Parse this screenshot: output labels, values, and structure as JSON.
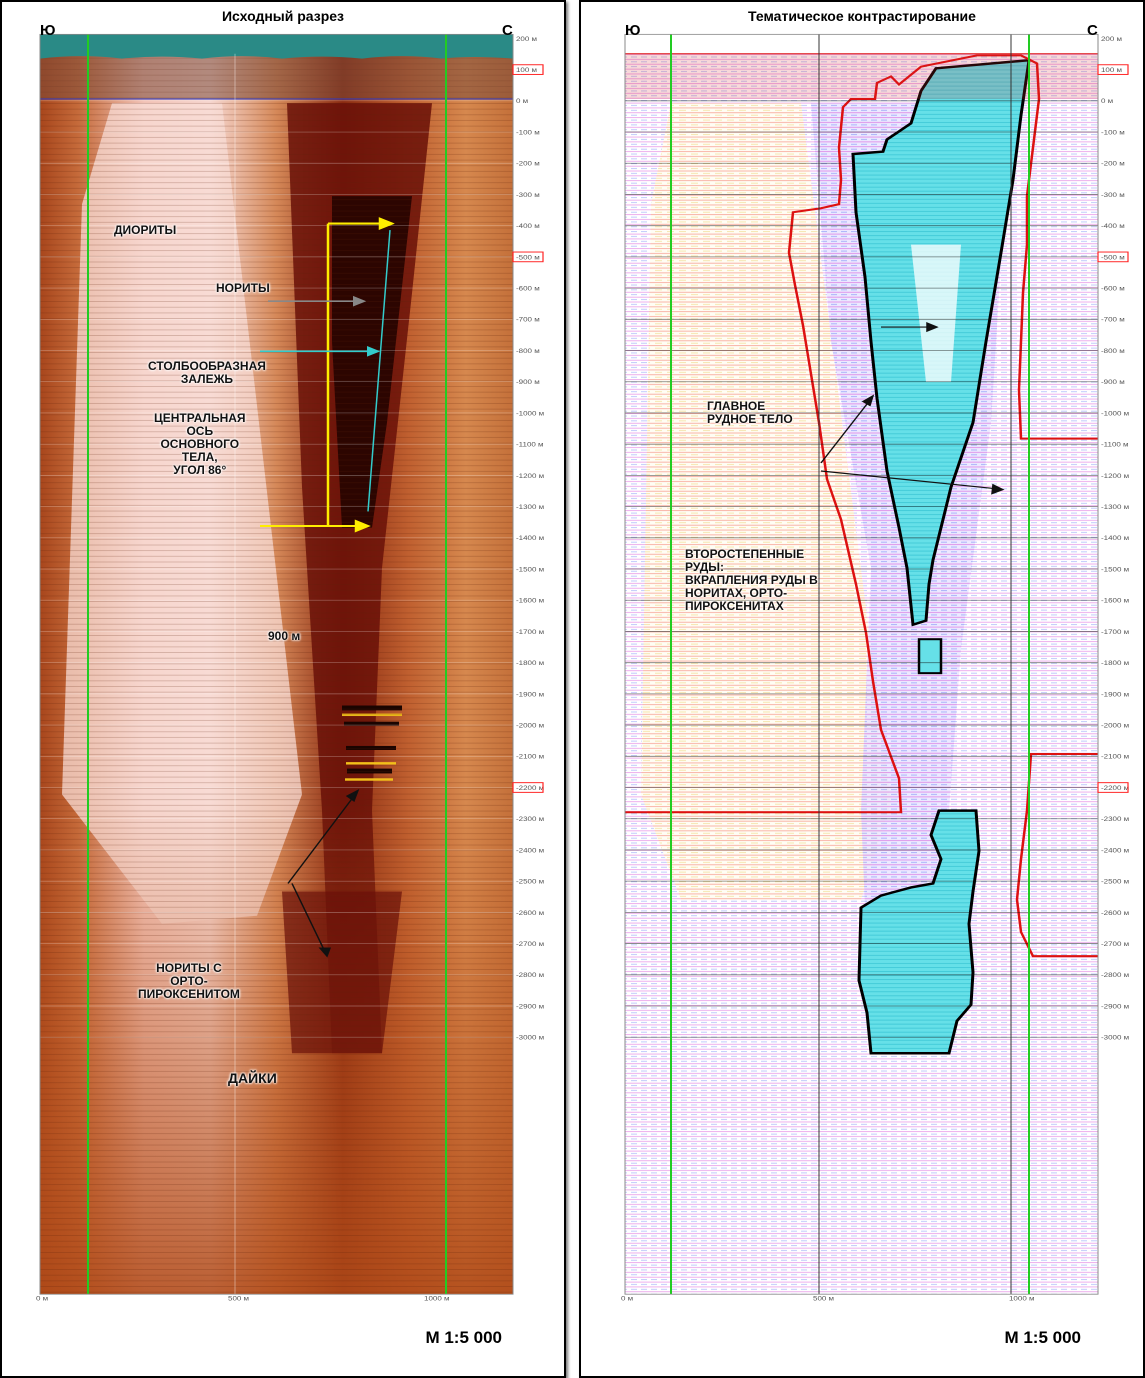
{
  "left_panel": {
    "title": "Исходный разрез",
    "dir_left": "Ю",
    "dir_right": "С",
    "scale": "М 1:5 000",
    "labels": {
      "diority": "ДИОРИТЫ",
      "nority": "НОРИТЫ",
      "stolb": "СТОЛБООБРАЗНАЯ\nЗАЛЕЖЬ",
      "axis": "ЦЕНТРАЛЬНАЯ\nОСЬ\nОСНОВНОГО\nТЕЛА,\nУГОЛ 86°",
      "dist": "900 м",
      "norites_orto": "НОРИТЫ С\nОРТО-\nПИРОКСЕНИТОМ",
      "dikes": "ДАЙКИ"
    }
  },
  "right_panel": {
    "title": "Тематическое контрастирование",
    "dir_left": "Ю",
    "dir_right": "С",
    "scale": "М 1:5 000",
    "labels": {
      "main_body": "ГЛАВНОЕ\nРУДНОЕ ТЕЛО",
      "secondary": "ВТОРОСТЕПЕННЫЕ\nРУДЫ:\nВКРАПЛЕНИЯ РУДЫ В\nНОРИТАХ, ОРТО-\nПИРОКСЕНИТАХ"
    }
  },
  "depth_ticks": [
    "200 м",
    "100 м",
    "0 м",
    "-100 м",
    "-200 м",
    "-300 м",
    "-400 м",
    "-500 м",
    "-600 м",
    "-700 м",
    "-800 м",
    "-900 м",
    "-1000 м",
    "-1100 м",
    "-1200 м",
    "-1300 м",
    "-1400 м",
    "-1500 м",
    "-1600 м",
    "-1700 м",
    "-1800 м",
    "-1900 м",
    "-2000 м",
    "-2100 м",
    "-2200 м",
    "-2300 м",
    "-2400 м",
    "-2500 м",
    "-2600 м",
    "-2700 м",
    "-2800 м",
    "-2900 м",
    "-3000 м"
  ],
  "highlighted_ticks": [
    "100 м",
    "-500 м",
    "-2200 м"
  ],
  "x_ticks": [
    "0 м",
    "500 м",
    "1000 м"
  ],
  "colors": {
    "panel_border": "#000000",
    "surface": "#2a8a86",
    "guide_lines": "#22cc22",
    "marker_arrow": "#ffee00",
    "axis_line": "#33cccc",
    "contour": "#dd1111",
    "ore_body": "#66e0e8",
    "highlight_box": "#ff2222"
  }
}
